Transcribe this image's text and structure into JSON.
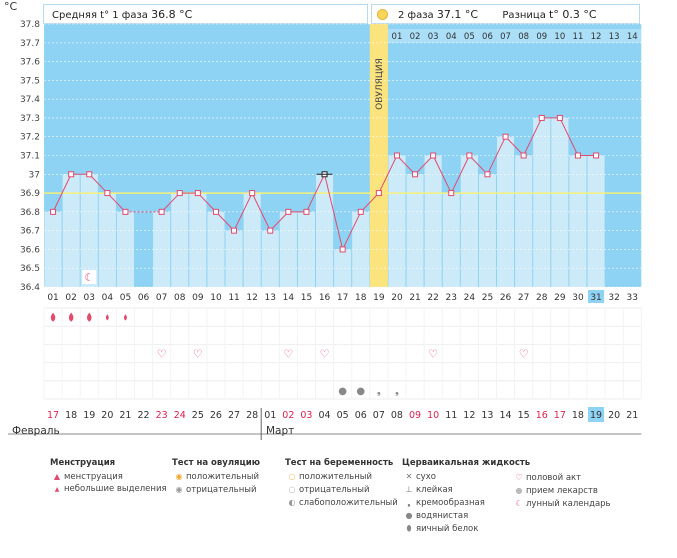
{
  "header": {
    "phase1_label": "Средняя t° 1 фаза",
    "phase1_value": "36.8 °C",
    "phase2_label": "2 фаза",
    "phase2_value": "37.1 °C",
    "diff_label": "Разница",
    "diff_value": "t° 0.3 °C"
  },
  "unit": "°C",
  "ovulation_label": "ОВУЛЯЦИЯ",
  "months": [
    "Февраль",
    "Март"
  ],
  "chart_data": {
    "type": "line",
    "ylim": [
      36.4,
      37.8
    ],
    "yticks": [
      "36.4",
      "36.5",
      "36.6",
      "36.7",
      "36.8",
      "36.9",
      "37",
      "37.1",
      "37.2",
      "37.3",
      "37.4",
      "37.5",
      "37.6",
      "37.7",
      "37.8"
    ],
    "cycle_days": [
      "01",
      "02",
      "03",
      "04",
      "05",
      "06",
      "07",
      "08",
      "09",
      "10",
      "11",
      "12",
      "13",
      "14",
      "15",
      "16",
      "17",
      "18",
      "19",
      "20",
      "21",
      "22",
      "23",
      "24",
      "25",
      "26",
      "27",
      "28",
      "29",
      "30",
      "31",
      "32",
      "33"
    ],
    "phase2_days": [
      "01",
      "02",
      "03",
      "04",
      "05",
      "06",
      "07",
      "08",
      "09",
      "10",
      "11",
      "12",
      "13",
      "14"
    ],
    "temperatures": [
      36.8,
      37.0,
      37.0,
      36.9,
      36.8,
      null,
      36.8,
      36.9,
      36.9,
      36.8,
      36.7,
      36.9,
      36.7,
      36.8,
      36.8,
      37.0,
      36.6,
      36.8,
      36.9,
      37.1,
      37.0,
      37.1,
      36.9,
      37.1,
      37.0,
      37.2,
      37.1,
      37.3,
      37.3,
      37.1,
      37.1,
      null,
      null
    ],
    "coverline": 36.9,
    "ovulation_day": 19,
    "current_day": 31,
    "calendar_dates": [
      "17",
      "18",
      "19",
      "20",
      "21",
      "22",
      "23",
      "24",
      "25",
      "26",
      "27",
      "28",
      "01",
      "02",
      "03",
      "04",
      "05",
      "06",
      "07",
      "08",
      "09",
      "10",
      "11",
      "12",
      "13",
      "14",
      "15",
      "16",
      "17",
      "18",
      "19",
      "20",
      "21"
    ],
    "weekend_dates": [
      17,
      23,
      24,
      2,
      3,
      9,
      10,
      16,
      17
    ],
    "today_index": 31,
    "menstruation_days": [
      1,
      2,
      3,
      4,
      5
    ],
    "heavy_days": [
      1,
      2,
      3
    ],
    "intercourse_days": [
      7,
      9,
      14,
      16,
      22,
      27
    ],
    "lunar_day": 3,
    "mucus_days": [
      17,
      18,
      19,
      20
    ]
  },
  "legend": {
    "menstruation": {
      "title": "Менструация",
      "items": [
        "менструация",
        "небольшие выделения"
      ]
    },
    "ovulation_test": {
      "title": "Тест на овуляцию",
      "items": [
        "положительный",
        "отрицательный"
      ]
    },
    "pregnancy_test": {
      "title": "Тест на беременность",
      "items": [
        "положительный",
        "отрицательный",
        "слабоположительный"
      ]
    },
    "cervical": {
      "title": "Церваикальная жидкость",
      "items": [
        "сухо",
        "клейкая",
        "кремообразная",
        "водянистая",
        "яичный белок"
      ]
    },
    "other": {
      "items": [
        "половой акт",
        "прием лекарств",
        "лунный календарь"
      ]
    }
  },
  "colors": {
    "plot_bg": "#8fd3f4",
    "bar_fill": "#cdeaf8",
    "line": "#e24a6e",
    "coverline": "#f7f07a",
    "ovulation": "#fbe37e",
    "weekend": "#e0214e",
    "today": "#8fd3f4"
  }
}
